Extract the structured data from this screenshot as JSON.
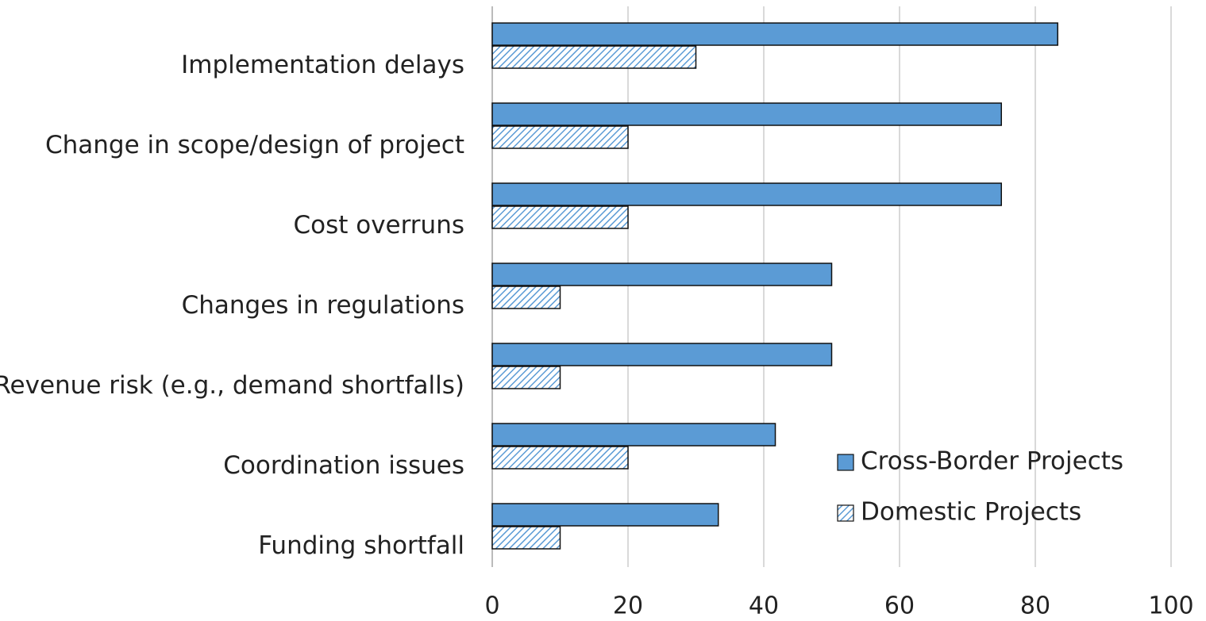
{
  "chart_data": {
    "type": "hbar",
    "categories": [
      "Implementation delays",
      "Change in scope/design of project",
      "Cost overruns",
      "Changes in regulations",
      "Revenue risk (e.g., demand shortfalls)",
      "Coordination issues",
      "Funding shortfall"
    ],
    "series": [
      {
        "name": "Cross-Border Projects",
        "color": "#5b9bd5",
        "values": [
          83.3,
          75,
          75,
          50,
          50,
          41.7,
          33.3
        ]
      },
      {
        "name": "Domestic Projects",
        "color": "#5b9bd5",
        "hatch": true,
        "values": [
          30,
          20,
          20,
          10,
          10,
          20,
          10
        ]
      }
    ],
    "xlim": [
      0,
      100
    ],
    "xticks": [
      0,
      20,
      40,
      60,
      80,
      100
    ],
    "grid": true,
    "legend": "lower right"
  }
}
